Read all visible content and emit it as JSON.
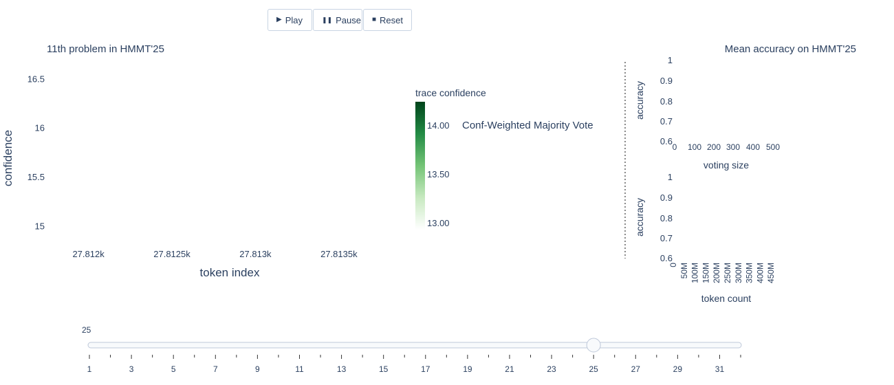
{
  "controls": {
    "play_label": "Play",
    "pause_label": "Pause",
    "reset_label": "Reset"
  },
  "chart_data": [
    {
      "type": "scatter",
      "title": "11th problem in HMMT'25",
      "xlabel": "token index",
      "ylabel": "confidence",
      "xticks": [
        "27.812k",
        "27.8125k",
        "27.813k",
        "27.8135k"
      ],
      "xtick_values": [
        27812,
        27812.5,
        27813,
        27813.5
      ],
      "xlim": [
        27811.8,
        27813.9
      ],
      "yticks": [
        "15",
        "15.5",
        "16",
        "16.5"
      ],
      "ytick_values": [
        15,
        15.5,
        16,
        16.5
      ],
      "ylim": [
        14.85,
        16.6
      ],
      "colorbar": {
        "title": "trace confidence",
        "ticks": [
          "13.00",
          "13.50",
          "14.00"
        ],
        "tick_values": [
          13.0,
          13.5,
          14.0
        ],
        "range": [
          12.93,
          14.24
        ],
        "colorscale": [
          "#ffffff",
          "#c7e9c0",
          "#74c476",
          "#238b45",
          "#00441b"
        ]
      },
      "annotation": "Conf-Weighted Majority Vote",
      "x": [],
      "y": []
    },
    {
      "type": "line",
      "title": "Mean accuracy on HMMT'25",
      "xlabel": "voting size",
      "ylabel": "accuracy",
      "xticks": [
        "0",
        "100",
        "200",
        "300",
        "400",
        "500"
      ],
      "yticks": [
        "0.6",
        "0.7",
        "0.8",
        "0.9",
        "1"
      ],
      "ylim": [
        0.6,
        1
      ],
      "x": [],
      "y": []
    },
    {
      "type": "line",
      "xlabel": "token count",
      "ylabel": "accuracy",
      "xticks": [
        "0",
        "50M",
        "100M",
        "150M",
        "200M",
        "250M",
        "300M",
        "350M",
        "400M",
        "450M"
      ],
      "yticks": [
        "0.6",
        "0.7",
        "0.8",
        "0.9",
        "1"
      ],
      "ylim": [
        0.6,
        1
      ],
      "x": [],
      "y": []
    }
  ],
  "slider": {
    "current_label": "25",
    "min": 1,
    "max": 32,
    "value": 25,
    "tick_labels": [
      "1",
      "3",
      "5",
      "7",
      "9",
      "11",
      "13",
      "15",
      "17",
      "19",
      "21",
      "23",
      "25",
      "27",
      "29",
      "31"
    ]
  }
}
